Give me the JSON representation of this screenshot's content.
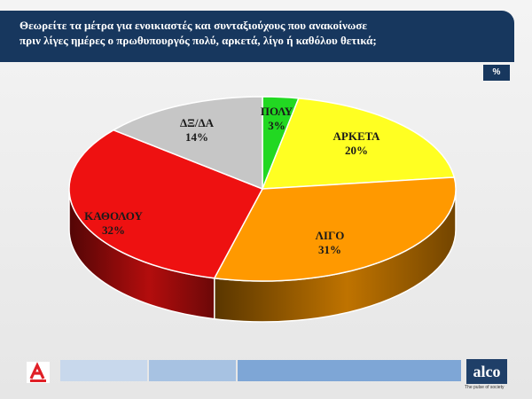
{
  "header": {
    "line1": "Θεωρείτε τα μέτρα για ενοικιαστές και συνταξιούχους  που ανακοίνωσε",
    "line2": "πριν λίγες ημέρες ο πρωθυπουργός πολύ, αρκετά, λίγο ή καθόλου θετικά;"
  },
  "unit_badge": "%",
  "chart_data": {
    "type": "pie",
    "title": "",
    "slices": [
      {
        "label": "ΠΟΛΥ",
        "value": 3,
        "display": "3%",
        "color": "#22d822"
      },
      {
        "label": "ΑΡΚΕΤΑ",
        "value": 20,
        "display": "20%",
        "color": "#ffff22"
      },
      {
        "label": "ΛΙΓΟ",
        "value": 31,
        "display": "31%",
        "color": "#ff9900"
      },
      {
        "label": "ΚΑΘΟΛΟΥ",
        "value": 32,
        "display": "32%",
        "color": "#ee1111"
      },
      {
        "label": "ΔΞ/ΔΑ",
        "value": 14,
        "display": "14%",
        "color": "#c6c6c6"
      }
    ],
    "legend": "none",
    "style": "3d"
  },
  "footer": {
    "logo_left": "alpha-logo",
    "logo_right_text": "alco",
    "tagline": "The pulse of society",
    "bar_colors": [
      "#c8d8ec",
      "#a7c2e2",
      "#7ea6d6"
    ]
  }
}
